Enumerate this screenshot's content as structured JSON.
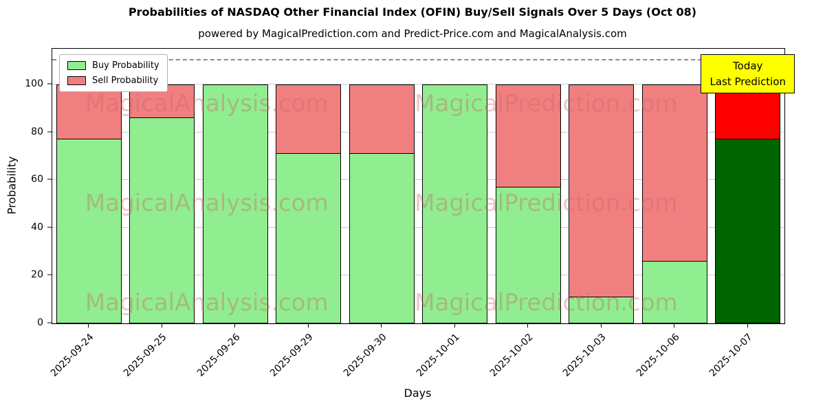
{
  "title": "Probabilities of NASDAQ Other Financial Index (OFIN) Buy/Sell Signals Over 5 Days (Oct 08)",
  "subtitle": "powered by MagicalPrediction.com and Predict-Price.com and MagicalAnalysis.com",
  "annotation": {
    "line1": "Today",
    "line2": "Last Prediction",
    "bg": "#ffff00"
  },
  "watermarks": {
    "left": "MagicalAnalysis.com",
    "right": "MagicalPrediction.com"
  },
  "chart_data": {
    "type": "bar",
    "stacked": true,
    "title": "Probabilities of NASDAQ Other Financial Index (OFIN) Buy/Sell Signals Over 5 Days (Oct 08)",
    "xlabel": "Days",
    "ylabel": "Probability",
    "categories": [
      "2025-09-24",
      "2025-09-25",
      "2025-09-26",
      "2025-09-29",
      "2025-09-30",
      "2025-10-01",
      "2025-10-02",
      "2025-10-03",
      "2025-10-06",
      "2025-10-07"
    ],
    "series": [
      {
        "name": "Buy Probability",
        "color": "#90ee90",
        "values": [
          77,
          86,
          100,
          71,
          71,
          100,
          57,
          11,
          26,
          77
        ]
      },
      {
        "name": "Sell Probability",
        "color": "#f08080",
        "values": [
          23,
          14,
          0,
          29,
          29,
          0,
          43,
          89,
          74,
          23
        ]
      }
    ],
    "last_bar_colors": {
      "buy": "#006400",
      "sell": "#ff0000"
    },
    "ylim": [
      0,
      115
    ],
    "yticks": [
      0,
      20,
      40,
      60,
      80,
      100
    ],
    "dashed_line_y": 110,
    "grid": true,
    "legend_position": "upper left"
  }
}
